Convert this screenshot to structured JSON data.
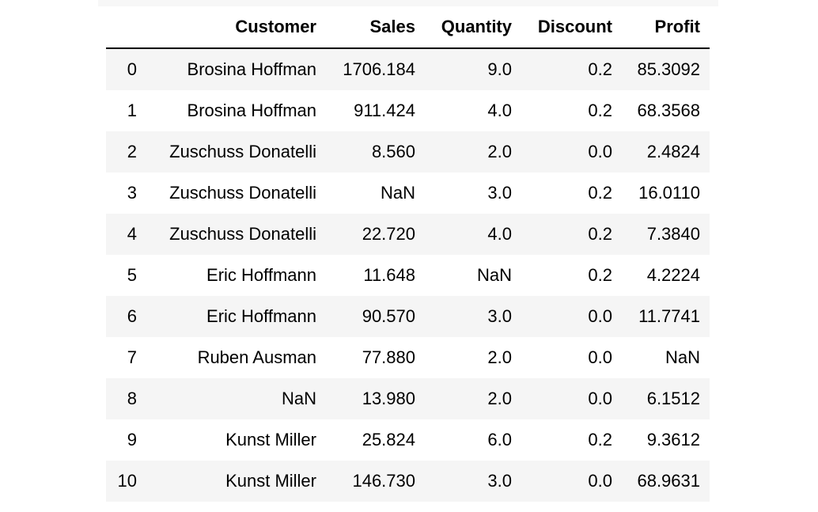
{
  "table": {
    "columns": [
      "",
      "Customer",
      "Sales",
      "Quantity",
      "Discount",
      "Profit"
    ],
    "rows": [
      {
        "index": "0",
        "customer": "Brosina Hoffman",
        "sales": "1706.184",
        "quantity": "9.0",
        "discount": "0.2",
        "profit": "85.3092"
      },
      {
        "index": "1",
        "customer": "Brosina Hoffman",
        "sales": "911.424",
        "quantity": "4.0",
        "discount": "0.2",
        "profit": "68.3568"
      },
      {
        "index": "2",
        "customer": "Zuschuss Donatelli",
        "sales": "8.560",
        "quantity": "2.0",
        "discount": "0.0",
        "profit": "2.4824"
      },
      {
        "index": "3",
        "customer": "Zuschuss Donatelli",
        "sales": "NaN",
        "quantity": "3.0",
        "discount": "0.2",
        "profit": "16.0110"
      },
      {
        "index": "4",
        "customer": "Zuschuss Donatelli",
        "sales": "22.720",
        "quantity": "4.0",
        "discount": "0.2",
        "profit": "7.3840"
      },
      {
        "index": "5",
        "customer": "Eric Hoffmann",
        "sales": "11.648",
        "quantity": "NaN",
        "discount": "0.2",
        "profit": "4.2224"
      },
      {
        "index": "6",
        "customer": "Eric Hoffmann",
        "sales": "90.570",
        "quantity": "3.0",
        "discount": "0.0",
        "profit": "11.7741"
      },
      {
        "index": "7",
        "customer": "Ruben Ausman",
        "sales": "77.880",
        "quantity": "2.0",
        "discount": "0.0",
        "profit": "NaN"
      },
      {
        "index": "8",
        "customer": "NaN",
        "sales": "13.980",
        "quantity": "2.0",
        "discount": "0.0",
        "profit": "6.1512"
      },
      {
        "index": "9",
        "customer": "Kunst Miller",
        "sales": "25.824",
        "quantity": "6.0",
        "discount": "0.2",
        "profit": "9.3612"
      },
      {
        "index": "10",
        "customer": "Kunst Miller",
        "sales": "146.730",
        "quantity": "3.0",
        "discount": "0.0",
        "profit": "68.9631"
      }
    ]
  }
}
